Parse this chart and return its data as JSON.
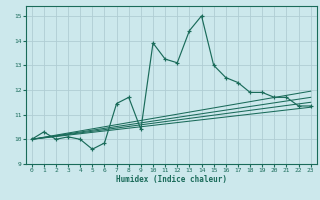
{
  "xlabel": "Humidex (Indice chaleur)",
  "ylabel": "",
  "bg_color": "#cce8ec",
  "grid_color": "#b0cdd4",
  "line_color": "#1a6b5a",
  "xlim": [
    -0.5,
    23.5
  ],
  "ylim": [
    9.0,
    15.4
  ],
  "yticks": [
    9,
    10,
    11,
    12,
    13,
    14,
    15
  ],
  "xticks": [
    0,
    1,
    2,
    3,
    4,
    5,
    6,
    7,
    8,
    9,
    10,
    11,
    12,
    13,
    14,
    15,
    16,
    17,
    18,
    19,
    20,
    21,
    22,
    23
  ],
  "main_line": {
    "x": [
      0,
      1,
      2,
      3,
      4,
      5,
      6,
      7,
      8,
      9,
      10,
      11,
      12,
      13,
      14,
      15,
      16,
      17,
      18,
      19,
      20,
      21,
      22,
      23
    ],
    "y": [
      10.0,
      10.3,
      10.0,
      10.1,
      10.0,
      9.6,
      9.85,
      11.45,
      11.7,
      10.4,
      13.9,
      13.25,
      13.1,
      14.4,
      15.0,
      13.0,
      12.5,
      12.3,
      11.9,
      11.9,
      11.7,
      11.7,
      11.35,
      11.35
    ]
  },
  "flat_lines": [
    {
      "x": [
        0,
        23
      ],
      "y": [
        10.0,
        11.3
      ]
    },
    {
      "x": [
        0,
        23
      ],
      "y": [
        10.0,
        11.5
      ]
    },
    {
      "x": [
        0,
        23
      ],
      "y": [
        10.0,
        11.7
      ]
    },
    {
      "x": [
        0,
        23
      ],
      "y": [
        10.0,
        11.95
      ]
    }
  ]
}
